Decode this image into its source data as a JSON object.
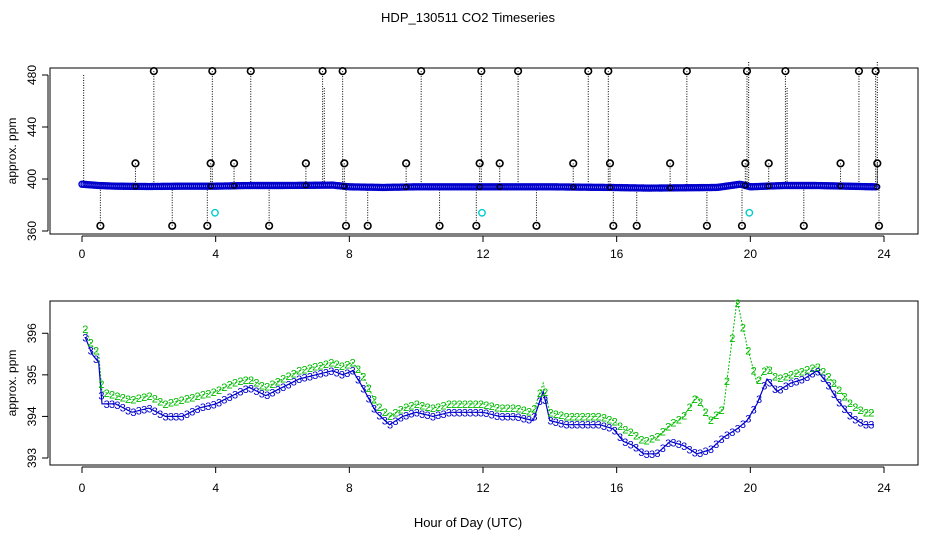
{
  "title": "HDP_130511  CO2 Timeseries",
  "xlabel": "Hour of Day (UTC)",
  "colors": {
    "black": "#000000",
    "blue": "#0000cc",
    "cyan": "#00cccc",
    "green": "#00bb00"
  },
  "chart_data": [
    {
      "type": "scatter",
      "ylabel": "approx. ppm",
      "xlim": [
        0,
        24
      ],
      "ylim": [
        360,
        480
      ],
      "x_ticks": [
        0,
        4,
        8,
        12,
        16,
        20,
        24
      ],
      "y_ticks": [
        360,
        400,
        440,
        480
      ],
      "grid": false,
      "series": [
        {
          "marker": "o",
          "color": "#0000cc",
          "baseline": [
            [
              0,
              396
            ],
            [
              0.5,
              395
            ],
            [
              1,
              394.5
            ],
            [
              2,
              394.2
            ],
            [
              3,
              394.5
            ],
            [
              4,
              394.5
            ],
            [
              5,
              395
            ],
            [
              6,
              395
            ],
            [
              7.5,
              395.3
            ],
            [
              8,
              394
            ],
            [
              9,
              393.5
            ],
            [
              10,
              394
            ],
            [
              12,
              394
            ],
            [
              14,
              394
            ],
            [
              15.8,
              393.5
            ],
            [
              17,
              393
            ],
            [
              19,
              393.5
            ],
            [
              19.7,
              396
            ],
            [
              20,
              394
            ],
            [
              21,
              395
            ],
            [
              22,
              395
            ],
            [
              23.7,
              394
            ]
          ]
        },
        {
          "marker": "o",
          "color": "#000000",
          "high_x": [
            2.15,
            3.9,
            5.05,
            7.2,
            7.8,
            10.15,
            11.95,
            13.05,
            15.15,
            15.75,
            18.1,
            19.9,
            21.05,
            23.25,
            23.75
          ],
          "high_y": 483,
          "mid_x": [
            1.6,
            3.85,
            4.55,
            6.7,
            7.85,
            9.7,
            11.9,
            12.5,
            14.7,
            15.8,
            17.6,
            19.85,
            20.55,
            22.7,
            23.8
          ],
          "mid_y": 412,
          "low_x": [
            0.55,
            2.7,
            3.75,
            5.6,
            7.9,
            8.55,
            10.7,
            11.8,
            13.6,
            15.9,
            16.6,
            18.7,
            19.75,
            21.6,
            23.85
          ],
          "low_y": 364,
          "spikes": [
            [
              0.05,
              480
            ],
            [
              7.25,
              470
            ],
            [
              19.95,
              490
            ],
            [
              21.1,
              470
            ],
            [
              23.8,
              490
            ]
          ]
        },
        {
          "marker": "o",
          "color": "#00cccc",
          "x": [
            3.98,
            11.97,
            19.97
          ],
          "y": [
            374,
            374,
            374
          ]
        }
      ]
    },
    {
      "type": "line",
      "ylabel": "approx. ppm",
      "xlim": [
        0,
        24
      ],
      "ylim": [
        393,
        396.8
      ],
      "x_ticks": [
        0,
        4,
        8,
        12,
        16,
        20,
        24
      ],
      "y_ticks": [
        393,
        394,
        395,
        396
      ],
      "grid": false,
      "series": [
        {
          "marker": "3",
          "color": "#0000cc",
          "x": [
            0.1,
            0.3,
            0.5,
            0.6,
            1,
            1.5,
            2,
            2.5,
            3,
            3.5,
            4,
            4.5,
            5,
            5.5,
            6,
            6.5,
            7,
            7.5,
            7.8,
            8.1,
            8.4,
            8.8,
            9.2,
            9.6,
            10,
            10.5,
            11,
            11.5,
            12,
            12.5,
            13,
            13.5,
            13.8,
            14,
            14.5,
            15,
            15.5,
            15.9,
            16.2,
            16.5,
            16.8,
            17.2,
            17.6,
            18,
            18.4,
            18.8,
            19.2,
            19.6,
            19.9,
            20.2,
            20.5,
            20.8,
            21.2,
            21.6,
            22,
            22.3,
            22.6,
            23,
            23.4,
            23.7
          ],
          "y": [
            395.9,
            395.5,
            395.3,
            394.3,
            394.3,
            394.1,
            394.2,
            394,
            394,
            394.2,
            394.3,
            394.5,
            394.7,
            394.5,
            394.7,
            394.9,
            395,
            395.1,
            395,
            395.1,
            394.7,
            394.1,
            393.8,
            394,
            394.1,
            394,
            394.1,
            394.1,
            394.1,
            394,
            394,
            393.9,
            394.6,
            393.9,
            393.8,
            393.8,
            393.8,
            393.7,
            393.4,
            393.3,
            393.1,
            393.1,
            393.4,
            393.3,
            393.1,
            393.2,
            393.5,
            393.7,
            393.9,
            394.3,
            394.9,
            394.6,
            394.8,
            394.9,
            395.1,
            394.8,
            394.4,
            394,
            393.8,
            393.8
          ]
        },
        {
          "marker": "2",
          "color": "#00bb00",
          "x": [
            0.1,
            0.3,
            0.5,
            0.6,
            1,
            1.5,
            2,
            2.5,
            3,
            3.5,
            4,
            4.5,
            5,
            5.5,
            6,
            6.5,
            7,
            7.5,
            7.8,
            8.1,
            8.4,
            8.8,
            9.2,
            9.6,
            10,
            10.5,
            11,
            11.5,
            12,
            12.5,
            13,
            13.5,
            13.8,
            14,
            14.5,
            15,
            15.5,
            15.9,
            16.2,
            16.5,
            16.8,
            17.2,
            17.6,
            18,
            18.4,
            18.8,
            19.2,
            19.6,
            19.9,
            20.2,
            20.5,
            20.8,
            21.2,
            21.6,
            22,
            22.3,
            22.6,
            23,
            23.4,
            23.7
          ],
          "y": [
            396.1,
            395.7,
            395.5,
            394.6,
            394.5,
            394.4,
            394.5,
            394.3,
            394.4,
            394.5,
            394.6,
            394.8,
            394.9,
            394.7,
            394.9,
            395.1,
            395.2,
            395.3,
            395.2,
            395.3,
            395,
            394.3,
            394,
            394.2,
            394.3,
            394.2,
            394.3,
            394.3,
            394.3,
            394.2,
            394.2,
            394.1,
            394.8,
            394.1,
            394,
            394,
            394,
            393.9,
            393.7,
            393.6,
            393.4,
            393.5,
            393.8,
            394,
            394.5,
            393.9,
            394.2,
            396.8,
            395.7,
            394.8,
            395.2,
            394.9,
            395,
            395.1,
            395.2,
            395,
            394.7,
            394.3,
            394.1,
            394.1
          ]
        }
      ]
    }
  ]
}
